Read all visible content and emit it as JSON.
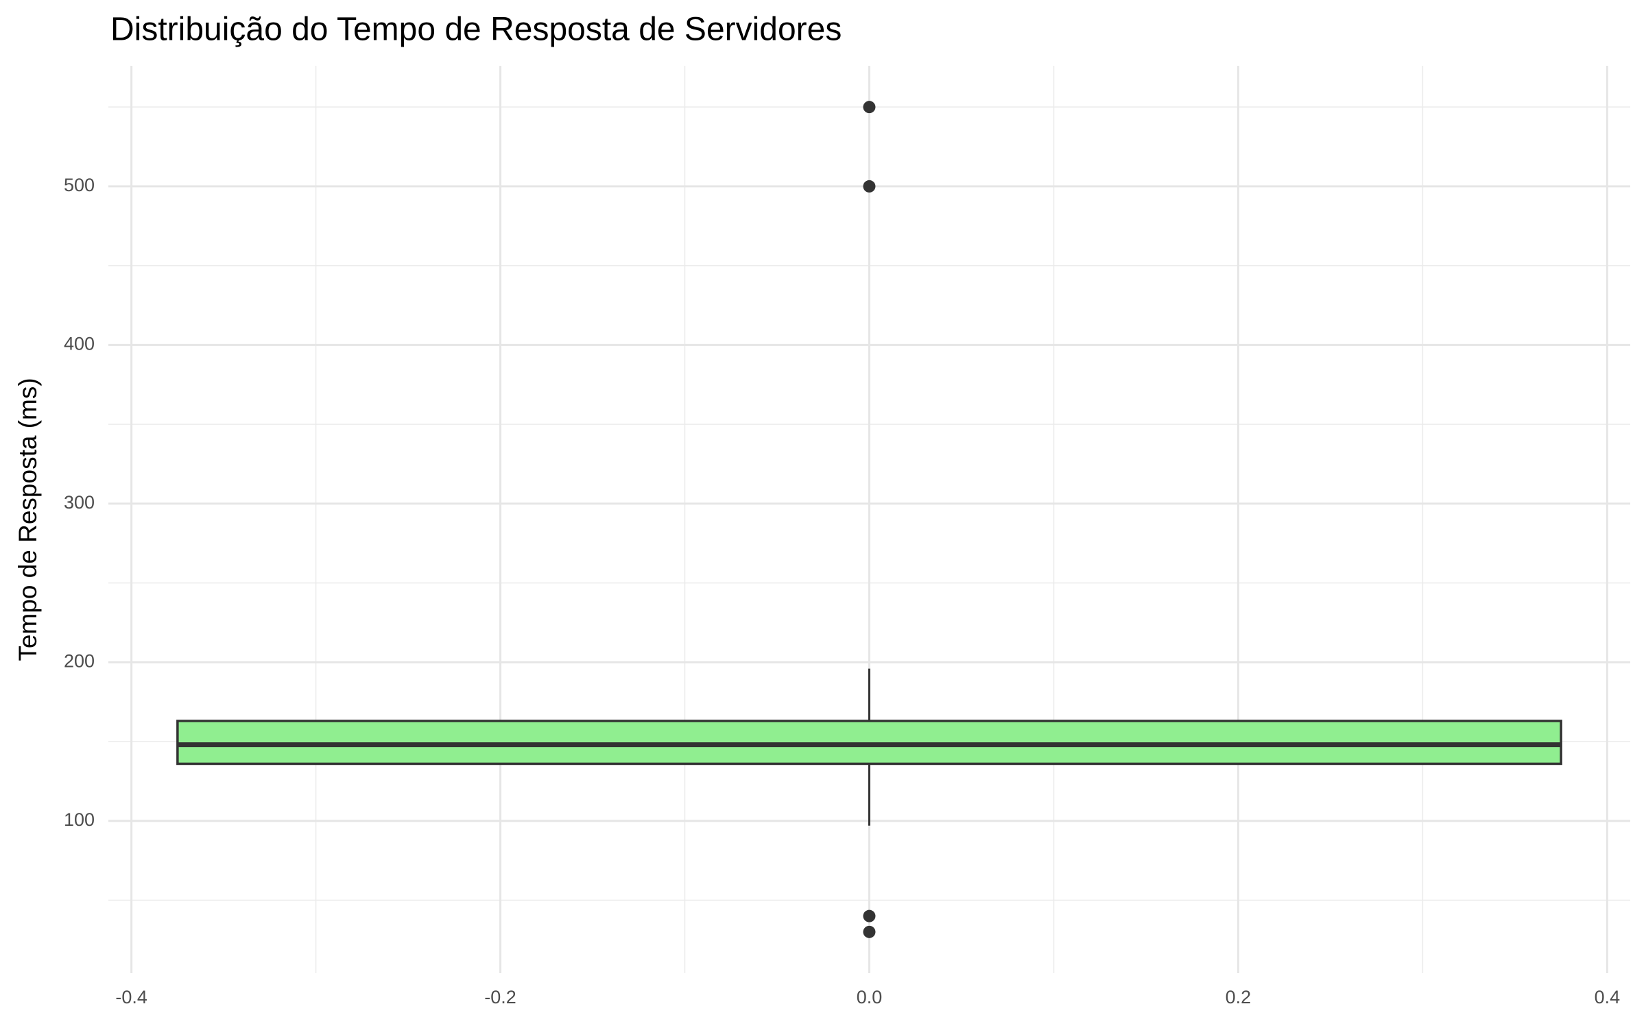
{
  "chart_data": {
    "type": "box",
    "title": "Distribuição do Tempo de Resposta de Servidores",
    "ylabel": "Tempo de Resposta (ms)",
    "box": {
      "x": 0,
      "color": "#90ee90",
      "whisker_low": 97,
      "q1": 136,
      "median": 148,
      "q3": 163,
      "whisker_high": 196,
      "outliers": [
        550,
        500,
        40,
        30
      ]
    },
    "xlim": [
      -0.4125,
      0.4125
    ],
    "xticks": [
      -0.4,
      -0.2,
      {
        "value": 0,
        "label": "0.0"
      },
      0.2,
      0.4
    ],
    "xticks_minor": [
      -0.3,
      -0.1,
      0.1,
      0.3
    ],
    "ylim": [
      4,
      576
    ],
    "yticks": [
      100,
      200,
      300,
      400,
      500
    ],
    "yticks_minor": [
      50,
      150,
      250,
      350,
      450,
      550
    ],
    "grid": true
  }
}
